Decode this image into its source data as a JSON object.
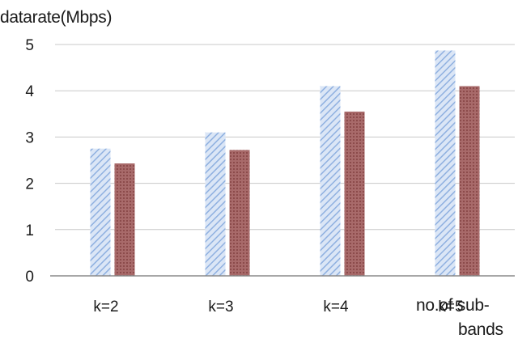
{
  "chart_data": {
    "type": "bar",
    "categories": [
      "k=2",
      "k=3",
      "k=4",
      "k=5"
    ],
    "series": [
      {
        "values": [
          2.75,
          3.1,
          4.1,
          4.87
        ],
        "color": "#a9c4ea",
        "pattern": "diagonal-hatch"
      },
      {
        "values": [
          2.43,
          2.72,
          3.55,
          4.1
        ],
        "color": "#9b5a5a",
        "pattern": "dotted"
      }
    ],
    "ylabel": "datarate(Mbps)",
    "xlabel_line1": "no.of sub-",
    "xlabel_line2": "bands",
    "ylim": [
      0,
      5
    ],
    "yticks": [
      "0",
      "1",
      "2",
      "3",
      "4",
      "5"
    ],
    "grid": true
  }
}
